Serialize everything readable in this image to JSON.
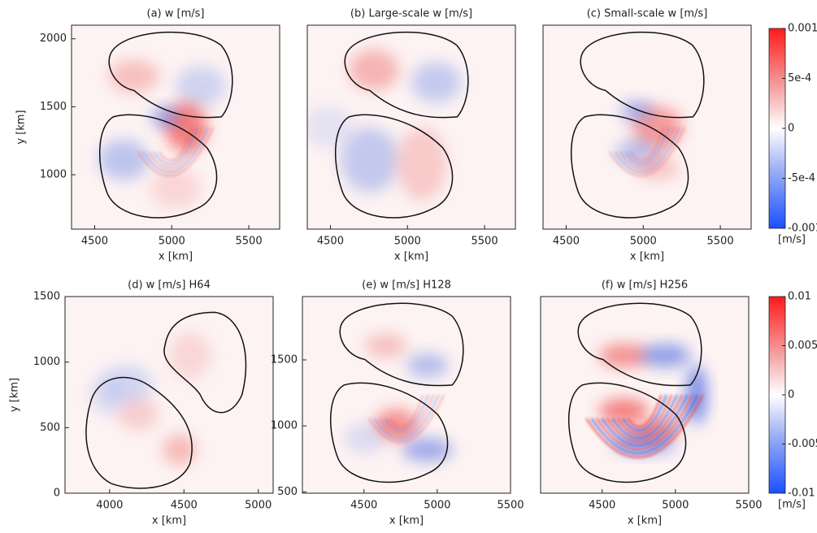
{
  "chart_data": [
    {
      "type": "heatmap",
      "title": "(a) w [m/s]",
      "xlabel": "x [km]",
      "ylabel": "y [km]",
      "xlim": [
        4350,
        5700
      ],
      "xticks": [
        4500,
        5000,
        5500
      ],
      "ylim": [
        600,
        2100
      ],
      "yticks": [
        1000,
        1500,
        2000
      ]
    },
    {
      "type": "heatmap",
      "title": "(b) Large-scale w [m/s]",
      "xlabel": "x [km]",
      "xlim": [
        4350,
        5700
      ],
      "xticks": [
        4500,
        5000,
        5500
      ],
      "ylim": [
        600,
        2100
      ]
    },
    {
      "type": "heatmap",
      "title": "(c) Small-scale w [m/s]",
      "xlabel": "x [km]",
      "xlim": [
        4350,
        5700
      ],
      "xticks": [
        4500,
        5000,
        5500
      ],
      "ylim": [
        600,
        2100
      ],
      "colorbar": {
        "lim": [
          -0.001,
          0.001
        ],
        "ticks": [
          0.001,
          {
            "value": 0.0005,
            "label": "5e-4"
          },
          0,
          {
            "value": -0.0005,
            "label": "-5e-4"
          },
          -0.001
        ],
        "unit": "[m/s]"
      }
    },
    {
      "type": "heatmap",
      "title": "(d) w [m/s] H64",
      "xlabel": "x [km]",
      "ylabel": "y [km]",
      "xlim": [
        3700,
        5100
      ],
      "xticks": [
        4000,
        4500,
        5000
      ],
      "ylim": [
        0,
        1500
      ],
      "yticks": [
        0,
        500,
        1000,
        1500
      ]
    },
    {
      "type": "heatmap",
      "title": "(e) w [m/s] H128",
      "xlabel": "x [km]",
      "xlim": [
        4080,
        5500
      ],
      "xticks": [
        4500,
        5000,
        5500
      ],
      "ylim": [
        490,
        1980
      ],
      "yticks": [
        500,
        1000,
        1500
      ]
    },
    {
      "type": "heatmap",
      "title": "(f) w [m/s] H256",
      "xlabel": "x [km]",
      "xlim": [
        4080,
        5500
      ],
      "xticks": [
        4500,
        5000,
        5500
      ],
      "ylim": [
        490,
        1980
      ],
      "colorbar": {
        "lim": [
          -0.01,
          0.01
        ],
        "ticks": [
          0.01,
          0.005,
          0,
          -0.005,
          -0.01
        ],
        "unit": "[m/s]"
      }
    }
  ]
}
